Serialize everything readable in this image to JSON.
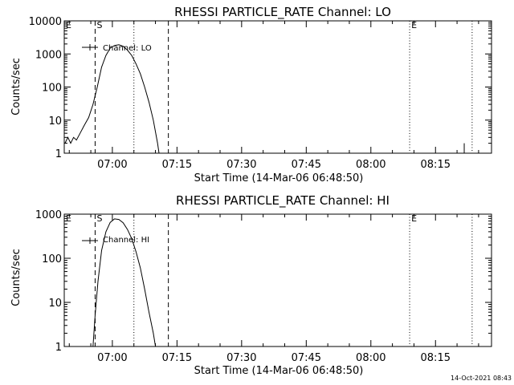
{
  "footer_timestamp": "14-Oct-2021 08:43",
  "chart_data": [
    {
      "type": "line",
      "title": "RHESSI PARTICLE_RATE Channel: LO",
      "xlabel": "Start Time (14-Mar-06 06:48:50)",
      "ylabel": "Counts/sec",
      "yscale": "log",
      "ylim": [
        1,
        10000
      ],
      "y_ticks": [
        "1",
        "10",
        "100",
        "1000",
        "10000"
      ],
      "xlim": [
        "06:48:50",
        "08:28:00"
      ],
      "x_ticks": [
        "07:00",
        "07:15",
        "07:30",
        "07:45",
        "08:00",
        "08:15"
      ],
      "legend": {
        "entry": "Channel: LO",
        "placement": "top-left"
      },
      "markers": [
        {
          "label": "E",
          "time": "06:48:50",
          "style": "dotted"
        },
        {
          "label": "S",
          "time": "06:56:00",
          "style": "dashed"
        },
        {
          "label": "",
          "time": "07:05:00",
          "style": "dotted"
        },
        {
          "label": "",
          "time": "07:13:00",
          "style": "dashed"
        },
        {
          "label": "E",
          "time": "08:09:00",
          "style": "dotted"
        },
        {
          "label": "",
          "time": "08:23:30",
          "style": "dotted"
        }
      ],
      "series": [
        {
          "name": "Channel: LO",
          "points": [
            [
              "06:49:00",
              2
            ],
            [
              "06:49:40",
              3
            ],
            [
              "06:50:20",
              2
            ],
            [
              "06:51:00",
              3
            ],
            [
              "06:51:40",
              2.5
            ],
            [
              "06:52:30",
              4
            ],
            [
              "06:53:30",
              7
            ],
            [
              "06:54:30",
              12
            ],
            [
              "06:55:30",
              30
            ],
            [
              "06:56:30",
              100
            ],
            [
              "06:57:30",
              400
            ],
            [
              "06:58:30",
              900
            ],
            [
              "06:59:30",
              1500
            ],
            [
              "07:00:30",
              1800
            ],
            [
              "07:01:30",
              1900
            ],
            [
              "07:02:30",
              1700
            ],
            [
              "07:03:30",
              1300
            ],
            [
              "07:04:30",
              900
            ],
            [
              "07:05:30",
              500
            ],
            [
              "07:06:30",
              250
            ],
            [
              "07:07:30",
              100
            ],
            [
              "07:08:30",
              35
            ],
            [
              "07:09:30",
              10
            ],
            [
              "07:10:30",
              2
            ],
            [
              "07:10:50",
              1
            ]
          ],
          "spike": {
            "time": "08:21:40",
            "value": 2
          }
        }
      ]
    },
    {
      "type": "line",
      "title": "RHESSI PARTICLE_RATE Channel: HI",
      "xlabel": "Start Time (14-Mar-06 06:48:50)",
      "ylabel": "Counts/sec",
      "yscale": "log",
      "ylim": [
        1,
        1000
      ],
      "y_ticks": [
        "1",
        "10",
        "100",
        "1000"
      ],
      "xlim": [
        "06:48:50",
        "08:28:00"
      ],
      "x_ticks": [
        "07:00",
        "07:15",
        "07:30",
        "07:45",
        "08:00",
        "08:15"
      ],
      "legend": {
        "entry": "Channel: HI",
        "placement": "top-left"
      },
      "markers": [
        {
          "label": "E",
          "time": "06:48:50",
          "style": "dotted"
        },
        {
          "label": "S",
          "time": "06:56:00",
          "style": "dashed"
        },
        {
          "label": "",
          "time": "07:05:00",
          "style": "dotted"
        },
        {
          "label": "",
          "time": "07:13:00",
          "style": "dashed"
        },
        {
          "label": "E",
          "time": "08:09:00",
          "style": "dotted"
        },
        {
          "label": "",
          "time": "08:23:30",
          "style": "dotted"
        }
      ],
      "series": [
        {
          "name": "Channel: HI",
          "points": [
            [
              "06:55:30",
              1
            ],
            [
              "06:56:00",
              5
            ],
            [
              "06:56:40",
              30
            ],
            [
              "06:57:30",
              150
            ],
            [
              "06:58:30",
              400
            ],
            [
              "06:59:30",
              650
            ],
            [
              "07:00:30",
              780
            ],
            [
              "07:01:30",
              760
            ],
            [
              "07:02:30",
              640
            ],
            [
              "07:03:30",
              450
            ],
            [
              "07:04:30",
              280
            ],
            [
              "07:05:30",
              140
            ],
            [
              "07:06:30",
              60
            ],
            [
              "07:07:30",
              20
            ],
            [
              "07:08:30",
              6
            ],
            [
              "07:09:30",
              2
            ],
            [
              "07:10:00",
              1
            ]
          ]
        }
      ]
    }
  ]
}
